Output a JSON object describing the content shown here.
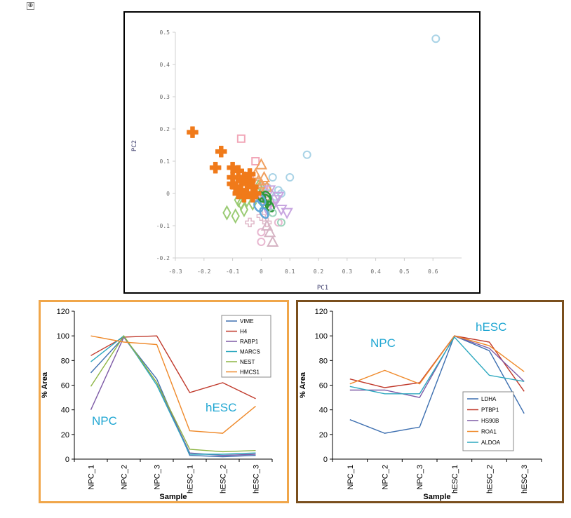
{
  "move_handle_glyph": "⊕",
  "chart_data": [
    {
      "type": "scatter",
      "title": "",
      "xlabel": "PC1",
      "ylabel": "PC2",
      "xlim": [
        -0.3,
        0.7
      ],
      "ylim": [
        -0.2,
        0.5
      ],
      "xticks": [
        -0.3,
        -0.2,
        -0.1,
        0,
        0.1,
        0.2,
        0.3,
        0.4,
        0.5,
        0.6
      ],
      "xtick_labels": [
        "-0.3",
        "-0.2",
        "-0.1",
        "0",
        "0.1",
        "0.2",
        "0.3",
        "0.4",
        "0.5",
        "0.6"
      ],
      "yticks": [
        -0.2,
        -0.1,
        0,
        0.1,
        0.2,
        0.3,
        0.4,
        0.5
      ],
      "ytick_labels": [
        "-0.2",
        "-0.1",
        "0",
        "0.1",
        "0.2",
        "0.3",
        "0.4",
        "0.5"
      ],
      "grid": false,
      "series": [
        {
          "marker": "cross",
          "color": "#f07a1a",
          "filled": true,
          "points": [
            [
              -0.24,
              0.19
            ],
            [
              -0.14,
              0.13
            ],
            [
              -0.16,
              0.08
            ],
            [
              -0.1,
              0.08
            ],
            [
              -0.1,
              0.05
            ],
            [
              -0.08,
              0.07
            ],
            [
              -0.07,
              0.04
            ],
            [
              -0.09,
              0.02
            ],
            [
              -0.1,
              0.03
            ],
            [
              -0.06,
              0.05
            ],
            [
              -0.05,
              0.03
            ],
            [
              -0.07,
              0.01
            ],
            [
              -0.04,
              0.04
            ],
            [
              -0.03,
              0.02
            ],
            [
              -0.05,
              0.0
            ],
            [
              -0.03,
              -0.01
            ],
            [
              -0.08,
              0.0
            ],
            [
              -0.06,
              -0.01
            ],
            [
              -0.02,
              0.0
            ],
            [
              -0.04,
              0.06
            ]
          ]
        },
        {
          "marker": "square",
          "color": "#f2a7b8",
          "filled": false,
          "points": [
            [
              -0.07,
              0.17
            ],
            [
              -0.02,
              0.1
            ],
            [
              -0.04,
              0.05
            ],
            [
              -0.01,
              0.03
            ],
            [
              0.01,
              0.02
            ],
            [
              0.02,
              -0.02
            ],
            [
              0.03,
              -0.03
            ],
            [
              0.01,
              0.0
            ],
            [
              -0.01,
              -0.01
            ]
          ]
        },
        {
          "marker": "circle",
          "color": "#a9d3e6",
          "filled": false,
          "points": [
            [
              0.61,
              0.48
            ],
            [
              0.16,
              0.12
            ],
            [
              0.1,
              0.05
            ],
            [
              0.04,
              0.05
            ],
            [
              0.06,
              0.01
            ],
            [
              0.03,
              0.0
            ],
            [
              0.05,
              -0.01
            ],
            [
              0.07,
              0.0
            ],
            [
              0.02,
              0.02
            ]
          ]
        },
        {
          "marker": "diamond",
          "color": "#9acb74",
          "filled": false,
          "points": [
            [
              -0.12,
              -0.06
            ],
            [
              -0.09,
              -0.07
            ],
            [
              -0.07,
              -0.03
            ],
            [
              -0.05,
              -0.02
            ],
            [
              -0.08,
              -0.02
            ],
            [
              -0.06,
              -0.05
            ],
            [
              -0.03,
              -0.03
            ],
            [
              0.0,
              0.02
            ],
            [
              0.02,
              -0.01
            ],
            [
              -0.01,
              0.02
            ]
          ]
        },
        {
          "marker": "triangle",
          "color": "#f0a060",
          "filled": false,
          "points": [
            [
              0.0,
              0.09
            ],
            [
              -0.02,
              0.06
            ],
            [
              0.01,
              0.05
            ],
            [
              0.0,
              0.03
            ],
            [
              0.02,
              0.02
            ],
            [
              -0.01,
              0.04
            ]
          ]
        },
        {
          "marker": "triangle-down",
          "color": "#c8a6e0",
          "filled": false,
          "points": [
            [
              0.03,
              0.01
            ],
            [
              0.05,
              -0.02
            ],
            [
              0.07,
              -0.05
            ],
            [
              0.04,
              -0.04
            ],
            [
              0.02,
              -0.05
            ],
            [
              0.06,
              -0.01
            ],
            [
              0.09,
              -0.06
            ],
            [
              0.0,
              -0.01
            ]
          ]
        },
        {
          "marker": "ellipse",
          "color": "#2f9a3c",
          "filled": false,
          "points": [
            [
              0.0,
              -0.01
            ],
            [
              0.02,
              -0.02
            ],
            [
              0.01,
              -0.03
            ],
            [
              0.03,
              -0.04
            ],
            [
              0.02,
              -0.01
            ]
          ]
        },
        {
          "marker": "plus",
          "color": "#e0b8c8",
          "filled": false,
          "points": [
            [
              -0.04,
              -0.09
            ],
            [
              0.02,
              -0.09
            ],
            [
              0.0,
              -0.07
            ]
          ]
        },
        {
          "marker": "circle",
          "color": "#e8b7d0",
          "filled": false,
          "points": [
            [
              0.0,
              -0.15
            ],
            [
              0.0,
              -0.12
            ],
            [
              0.06,
              -0.09
            ]
          ]
        },
        {
          "marker": "triangle",
          "color": "#d6b4c4",
          "filled": false,
          "points": [
            [
              0.04,
              -0.15
            ],
            [
              0.03,
              -0.12
            ],
            [
              0.02,
              -0.1
            ]
          ]
        },
        {
          "marker": "circle",
          "color": "#9ed4bc",
          "filled": false,
          "points": [
            [
              0.07,
              -0.09
            ],
            [
              0.04,
              -0.06
            ]
          ]
        },
        {
          "marker": "ellipse",
          "color": "#5fa6d8",
          "filled": false,
          "points": [
            [
              -0.01,
              -0.04
            ],
            [
              0.01,
              -0.06
            ],
            [
              0.0,
              -0.02
            ]
          ]
        }
      ]
    },
    {
      "type": "line",
      "title": "",
      "xlabel": "Sample",
      "ylabel": "% Area",
      "ylim": [
        0,
        120
      ],
      "yticks": [
        0,
        20,
        40,
        60,
        80,
        100,
        120
      ],
      "categories": [
        "NPC_1",
        "NPC_2",
        "NPC_3",
        "hESC_1",
        "hESC_2",
        "hESC_3"
      ],
      "legend_position": "top-right",
      "series": [
        {
          "name": "VIME",
          "color": "#3d6fb0",
          "values": [
            70,
            99,
            65,
            3,
            2,
            3
          ]
        },
        {
          "name": "H4",
          "color": "#c0392b",
          "values": [
            84,
            99,
            100,
            54,
            62,
            49
          ]
        },
        {
          "name": "RABP1",
          "color": "#7d5aa6",
          "values": [
            40,
            99,
            62,
            5,
            3,
            4
          ]
        },
        {
          "name": "MARCS",
          "color": "#2ca8bf",
          "values": [
            79,
            100,
            60,
            4,
            4,
            5
          ]
        },
        {
          "name": "NEST",
          "color": "#8db544",
          "values": [
            59,
            100,
            62,
            8,
            6,
            7
          ]
        },
        {
          "name": "HMCS1",
          "color": "#ef8a2b",
          "values": [
            100,
            95,
            93,
            23,
            21,
            43
          ]
        }
      ],
      "annotations": [
        {
          "text": "NPC"
        },
        {
          "text": "hESC"
        }
      ]
    },
    {
      "type": "line",
      "title": "",
      "xlabel": "Sample",
      "ylabel": "% Area",
      "ylim": [
        0,
        120
      ],
      "yticks": [
        0,
        20,
        40,
        60,
        80,
        100,
        120
      ],
      "categories": [
        "NPC_1",
        "NPC_2",
        "NPC_3",
        "hESC_1",
        "hESC_2",
        "hESC_3"
      ],
      "legend_position": "bottom-right",
      "series": [
        {
          "name": "LDHA",
          "color": "#3d6fb0",
          "values": [
            32,
            21,
            26,
            100,
            88,
            37
          ]
        },
        {
          "name": "PTBP1",
          "color": "#c0392b",
          "values": [
            65,
            58,
            62,
            100,
            95,
            55
          ]
        },
        {
          "name": "HS90B",
          "color": "#7d5aa6",
          "values": [
            56,
            56,
            50,
            100,
            90,
            63
          ]
        },
        {
          "name": "ROA1",
          "color": "#ef8a2b",
          "values": [
            61,
            72,
            61,
            100,
            92,
            71
          ]
        },
        {
          "name": "ALDOA",
          "color": "#2ca8bf",
          "values": [
            59,
            53,
            53,
            99,
            68,
            63
          ]
        }
      ],
      "annotations": [
        {
          "text": "NPC"
        },
        {
          "text": "hESC"
        }
      ]
    }
  ]
}
